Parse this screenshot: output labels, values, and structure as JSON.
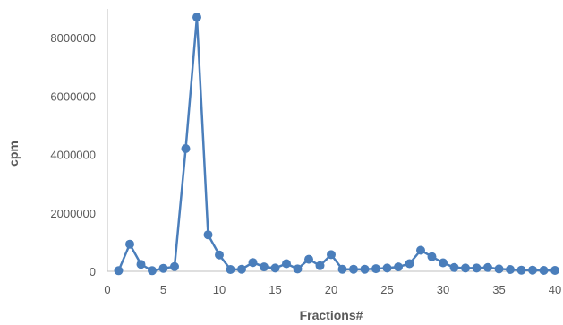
{
  "chart_data": {
    "type": "line",
    "title": "",
    "xlabel": "Fractions#",
    "ylabel": "cpm",
    "xlim": [
      0,
      40
    ],
    "ylim": [
      0,
      8000000
    ],
    "x_ticks": [
      0,
      5,
      10,
      15,
      20,
      25,
      30,
      35,
      40
    ],
    "y_ticks": [
      0,
      2000000,
      4000000,
      6000000,
      8000000
    ],
    "x_tick_labels": [
      "0",
      "5",
      "10",
      "15",
      "20",
      "25",
      "30",
      "35",
      "40"
    ],
    "y_tick_labels": [
      "0",
      "2000000",
      "4000000",
      "6000000",
      "8000000"
    ],
    "grid": false,
    "legend": "none",
    "series": [
      {
        "color": "#4a7ebb",
        "x": [
          1,
          2,
          3,
          4,
          5,
          6,
          7,
          8,
          9,
          10,
          11,
          12,
          13,
          14,
          15,
          16,
          17,
          18,
          19,
          20,
          21,
          22,
          23,
          24,
          25,
          26,
          27,
          28,
          29,
          30,
          31,
          32,
          33,
          34,
          35,
          36,
          37,
          38,
          39,
          40
        ],
        "y": [
          20000,
          930000,
          240000,
          20000,
          100000,
          160000,
          4200000,
          8700000,
          1250000,
          560000,
          60000,
          70000,
          300000,
          150000,
          110000,
          260000,
          80000,
          410000,
          190000,
          570000,
          70000,
          70000,
          70000,
          90000,
          110000,
          150000,
          260000,
          720000,
          500000,
          290000,
          130000,
          110000,
          110000,
          130000,
          80000,
          60000,
          40000,
          40000,
          30000,
          30000
        ]
      }
    ]
  }
}
